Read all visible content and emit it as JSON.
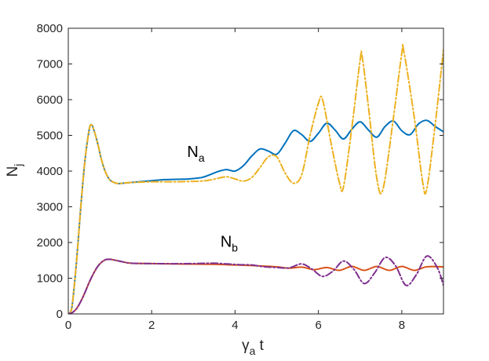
{
  "chart_data": {
    "type": "line",
    "title": "",
    "xlabel": "γ",
    "xlabel_sub": "a",
    "xlabel_tail": " t",
    "ylabel": "N",
    "ylabel_sub": "j",
    "xlim": [
      0,
      9
    ],
    "ylim": [
      0,
      8000
    ],
    "x_ticks": [
      0,
      2,
      4,
      6,
      8
    ],
    "y_ticks": [
      0,
      1000,
      2000,
      3000,
      4000,
      5000,
      6000,
      7000,
      8000
    ],
    "grid": false,
    "legend": "none",
    "annotations": [
      {
        "main": "N",
        "sub": "a",
        "x": 2.85,
        "y": 4400
      },
      {
        "main": "N",
        "sub": "b",
        "x": 3.65,
        "y": 1880
      }
    ],
    "series": [
      {
        "color": "#0072BD",
        "dash": "solid",
        "x": [
          0,
          0.05,
          0.1,
          0.2,
          0.3,
          0.4,
          0.5,
          0.55,
          0.6,
          0.7,
          0.8,
          0.9,
          1.0,
          1.1,
          1.2,
          1.3,
          1.5,
          1.7,
          2.0,
          2.3,
          2.6,
          2.9,
          3.2,
          3.4,
          3.6,
          3.8,
          4.0,
          4.2,
          4.4,
          4.6,
          4.8,
          5.0,
          5.2,
          5.4,
          5.6,
          5.8,
          6.0,
          6.2,
          6.4,
          6.6,
          6.8,
          7.0,
          7.2,
          7.4,
          7.6,
          7.8,
          8.0,
          8.2,
          8.4,
          8.6,
          8.8,
          9.0
        ],
        "values": [
          0,
          50,
          300,
          1500,
          3000,
          4300,
          5150,
          5300,
          5200,
          4800,
          4300,
          3950,
          3750,
          3680,
          3650,
          3660,
          3680,
          3700,
          3730,
          3760,
          3770,
          3780,
          3820,
          3900,
          3990,
          4040,
          4000,
          4150,
          4420,
          4620,
          4560,
          4470,
          4780,
          5130,
          5020,
          4830,
          5060,
          5340,
          5150,
          4900,
          5170,
          5380,
          5150,
          4950,
          5250,
          5400,
          5130,
          5020,
          5320,
          5420,
          5250,
          5100
        ]
      },
      {
        "color": "#EDB120",
        "dash": "dashdot",
        "x": [
          0,
          0.05,
          0.1,
          0.2,
          0.3,
          0.4,
          0.5,
          0.55,
          0.6,
          0.7,
          0.8,
          0.9,
          1.0,
          1.1,
          1.2,
          1.3,
          1.5,
          1.7,
          2.0,
          2.3,
          2.6,
          2.9,
          3.2,
          3.4,
          3.6,
          3.8,
          4.0,
          4.2,
          4.4,
          4.6,
          4.8,
          5.0,
          5.2,
          5.4,
          5.6,
          5.8,
          6.0,
          6.1,
          6.3,
          6.5,
          6.6,
          6.8,
          7.0,
          7.05,
          7.2,
          7.4,
          7.55,
          7.8,
          8.0,
          8.05,
          8.3,
          8.5,
          8.6,
          8.8,
          9.0
        ],
        "values": [
          0,
          50,
          300,
          1500,
          3000,
          4300,
          5150,
          5300,
          5200,
          4800,
          4300,
          3950,
          3750,
          3680,
          3650,
          3660,
          3680,
          3690,
          3700,
          3700,
          3700,
          3710,
          3720,
          3750,
          3800,
          3840,
          3780,
          3720,
          3820,
          4100,
          4400,
          4400,
          3950,
          3660,
          3900,
          5000,
          5900,
          6000,
          4800,
          3700,
          3550,
          5200,
          7100,
          7200,
          5800,
          3800,
          3500,
          5500,
          7300,
          7350,
          5500,
          3700,
          3500,
          5300,
          7400
        ]
      },
      {
        "color": "#D95319",
        "dash": "solid",
        "x": [
          0,
          0.1,
          0.2,
          0.3,
          0.4,
          0.5,
          0.6,
          0.7,
          0.8,
          0.9,
          1.0,
          1.1,
          1.3,
          1.5,
          2.0,
          2.5,
          3.0,
          3.5,
          4.0,
          4.5,
          5.0,
          5.3,
          5.6,
          5.9,
          6.2,
          6.5,
          6.8,
          7.1,
          7.4,
          7.7,
          8.0,
          8.3,
          8.6,
          9.0
        ],
        "values": [
          0,
          40,
          150,
          350,
          600,
          880,
          1120,
          1320,
          1450,
          1520,
          1530,
          1510,
          1460,
          1420,
          1410,
          1400,
          1395,
          1390,
          1370,
          1350,
          1320,
          1280,
          1310,
          1240,
          1300,
          1220,
          1330,
          1220,
          1330,
          1220,
          1330,
          1220,
          1320,
          1320
        ]
      },
      {
        "color": "#7E2F8E",
        "dash": "dashdot",
        "x": [
          0,
          0.1,
          0.2,
          0.3,
          0.4,
          0.5,
          0.6,
          0.7,
          0.8,
          0.9,
          1.0,
          1.1,
          1.3,
          1.5,
          2.0,
          2.5,
          3.0,
          3.5,
          3.8,
          4.1,
          4.4,
          4.7,
          5.0,
          5.3,
          5.6,
          5.85,
          6.1,
          6.35,
          6.6,
          6.85,
          7.1,
          7.35,
          7.6,
          7.85,
          8.1,
          8.35,
          8.6,
          8.85,
          9.0
        ],
        "values": [
          0,
          40,
          150,
          350,
          600,
          880,
          1120,
          1320,
          1450,
          1520,
          1530,
          1510,
          1460,
          1420,
          1410,
          1405,
          1410,
          1420,
          1400,
          1380,
          1370,
          1320,
          1300,
          1290,
          1400,
          1250,
          1050,
          1200,
          1480,
          1250,
          850,
          1150,
          1580,
          1350,
          800,
          1100,
          1620,
          1300,
          800
        ]
      }
    ]
  }
}
